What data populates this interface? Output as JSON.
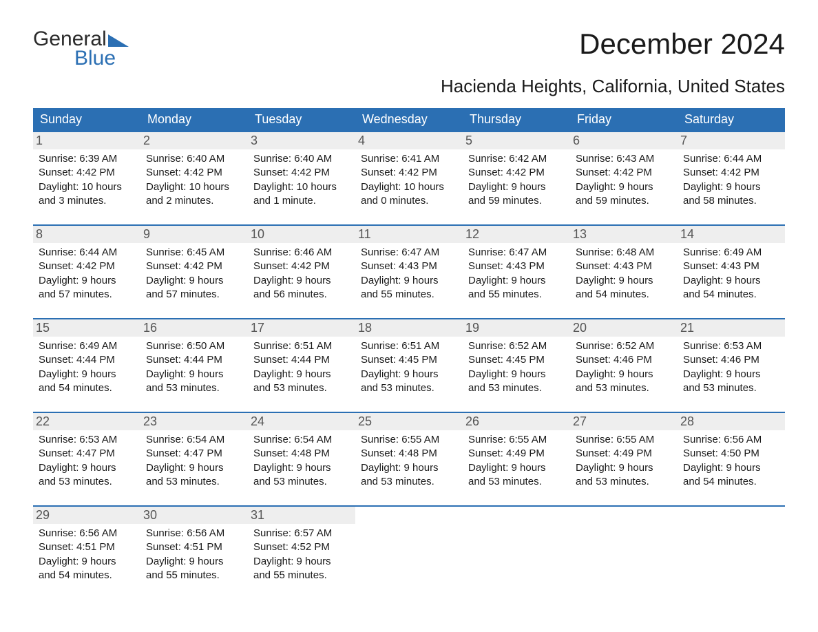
{
  "brand": {
    "word1": "General",
    "word2": "Blue",
    "icon_color": "#2b6fb3",
    "text_color": "#2b2b2b"
  },
  "title": "December 2024",
  "location": "Hacienda Heights, California, United States",
  "colors": {
    "header_bg": "#2b6fb3",
    "header_text": "#ffffff",
    "daynum_bg": "#eeeeee",
    "daynum_text": "#555555",
    "body_text": "#1a1a1a",
    "background": "#ffffff",
    "week_border": "#2b6fb3"
  },
  "layout": {
    "columns": 7,
    "rows": 5,
    "cell_info_fontsize": 15,
    "header_fontsize": 18,
    "title_fontsize": 42,
    "location_fontsize": 26
  },
  "day_names": [
    "Sunday",
    "Monday",
    "Tuesday",
    "Wednesday",
    "Thursday",
    "Friday",
    "Saturday"
  ],
  "weeks": [
    [
      {
        "n": "1",
        "sunrise": "Sunrise: 6:39 AM",
        "sunset": "Sunset: 4:42 PM",
        "daylight": "Daylight: 10 hours and 3 minutes."
      },
      {
        "n": "2",
        "sunrise": "Sunrise: 6:40 AM",
        "sunset": "Sunset: 4:42 PM",
        "daylight": "Daylight: 10 hours and 2 minutes."
      },
      {
        "n": "3",
        "sunrise": "Sunrise: 6:40 AM",
        "sunset": "Sunset: 4:42 PM",
        "daylight": "Daylight: 10 hours and 1 minute."
      },
      {
        "n": "4",
        "sunrise": "Sunrise: 6:41 AM",
        "sunset": "Sunset: 4:42 PM",
        "daylight": "Daylight: 10 hours and 0 minutes."
      },
      {
        "n": "5",
        "sunrise": "Sunrise: 6:42 AM",
        "sunset": "Sunset: 4:42 PM",
        "daylight": "Daylight: 9 hours and 59 minutes."
      },
      {
        "n": "6",
        "sunrise": "Sunrise: 6:43 AM",
        "sunset": "Sunset: 4:42 PM",
        "daylight": "Daylight: 9 hours and 59 minutes."
      },
      {
        "n": "7",
        "sunrise": "Sunrise: 6:44 AM",
        "sunset": "Sunset: 4:42 PM",
        "daylight": "Daylight: 9 hours and 58 minutes."
      }
    ],
    [
      {
        "n": "8",
        "sunrise": "Sunrise: 6:44 AM",
        "sunset": "Sunset: 4:42 PM",
        "daylight": "Daylight: 9 hours and 57 minutes."
      },
      {
        "n": "9",
        "sunrise": "Sunrise: 6:45 AM",
        "sunset": "Sunset: 4:42 PM",
        "daylight": "Daylight: 9 hours and 57 minutes."
      },
      {
        "n": "10",
        "sunrise": "Sunrise: 6:46 AM",
        "sunset": "Sunset: 4:42 PM",
        "daylight": "Daylight: 9 hours and 56 minutes."
      },
      {
        "n": "11",
        "sunrise": "Sunrise: 6:47 AM",
        "sunset": "Sunset: 4:43 PM",
        "daylight": "Daylight: 9 hours and 55 minutes."
      },
      {
        "n": "12",
        "sunrise": "Sunrise: 6:47 AM",
        "sunset": "Sunset: 4:43 PM",
        "daylight": "Daylight: 9 hours and 55 minutes."
      },
      {
        "n": "13",
        "sunrise": "Sunrise: 6:48 AM",
        "sunset": "Sunset: 4:43 PM",
        "daylight": "Daylight: 9 hours and 54 minutes."
      },
      {
        "n": "14",
        "sunrise": "Sunrise: 6:49 AM",
        "sunset": "Sunset: 4:43 PM",
        "daylight": "Daylight: 9 hours and 54 minutes."
      }
    ],
    [
      {
        "n": "15",
        "sunrise": "Sunrise: 6:49 AM",
        "sunset": "Sunset: 4:44 PM",
        "daylight": "Daylight: 9 hours and 54 minutes."
      },
      {
        "n": "16",
        "sunrise": "Sunrise: 6:50 AM",
        "sunset": "Sunset: 4:44 PM",
        "daylight": "Daylight: 9 hours and 53 minutes."
      },
      {
        "n": "17",
        "sunrise": "Sunrise: 6:51 AM",
        "sunset": "Sunset: 4:44 PM",
        "daylight": "Daylight: 9 hours and 53 minutes."
      },
      {
        "n": "18",
        "sunrise": "Sunrise: 6:51 AM",
        "sunset": "Sunset: 4:45 PM",
        "daylight": "Daylight: 9 hours and 53 minutes."
      },
      {
        "n": "19",
        "sunrise": "Sunrise: 6:52 AM",
        "sunset": "Sunset: 4:45 PM",
        "daylight": "Daylight: 9 hours and 53 minutes."
      },
      {
        "n": "20",
        "sunrise": "Sunrise: 6:52 AM",
        "sunset": "Sunset: 4:46 PM",
        "daylight": "Daylight: 9 hours and 53 minutes."
      },
      {
        "n": "21",
        "sunrise": "Sunrise: 6:53 AM",
        "sunset": "Sunset: 4:46 PM",
        "daylight": "Daylight: 9 hours and 53 minutes."
      }
    ],
    [
      {
        "n": "22",
        "sunrise": "Sunrise: 6:53 AM",
        "sunset": "Sunset: 4:47 PM",
        "daylight": "Daylight: 9 hours and 53 minutes."
      },
      {
        "n": "23",
        "sunrise": "Sunrise: 6:54 AM",
        "sunset": "Sunset: 4:47 PM",
        "daylight": "Daylight: 9 hours and 53 minutes."
      },
      {
        "n": "24",
        "sunrise": "Sunrise: 6:54 AM",
        "sunset": "Sunset: 4:48 PM",
        "daylight": "Daylight: 9 hours and 53 minutes."
      },
      {
        "n": "25",
        "sunrise": "Sunrise: 6:55 AM",
        "sunset": "Sunset: 4:48 PM",
        "daylight": "Daylight: 9 hours and 53 minutes."
      },
      {
        "n": "26",
        "sunrise": "Sunrise: 6:55 AM",
        "sunset": "Sunset: 4:49 PM",
        "daylight": "Daylight: 9 hours and 53 minutes."
      },
      {
        "n": "27",
        "sunrise": "Sunrise: 6:55 AM",
        "sunset": "Sunset: 4:49 PM",
        "daylight": "Daylight: 9 hours and 53 minutes."
      },
      {
        "n": "28",
        "sunrise": "Sunrise: 6:56 AM",
        "sunset": "Sunset: 4:50 PM",
        "daylight": "Daylight: 9 hours and 54 minutes."
      }
    ],
    [
      {
        "n": "29",
        "sunrise": "Sunrise: 6:56 AM",
        "sunset": "Sunset: 4:51 PM",
        "daylight": "Daylight: 9 hours and 54 minutes."
      },
      {
        "n": "30",
        "sunrise": "Sunrise: 6:56 AM",
        "sunset": "Sunset: 4:51 PM",
        "daylight": "Daylight: 9 hours and 55 minutes."
      },
      {
        "n": "31",
        "sunrise": "Sunrise: 6:57 AM",
        "sunset": "Sunset: 4:52 PM",
        "daylight": "Daylight: 9 hours and 55 minutes."
      },
      null,
      null,
      null,
      null
    ]
  ]
}
